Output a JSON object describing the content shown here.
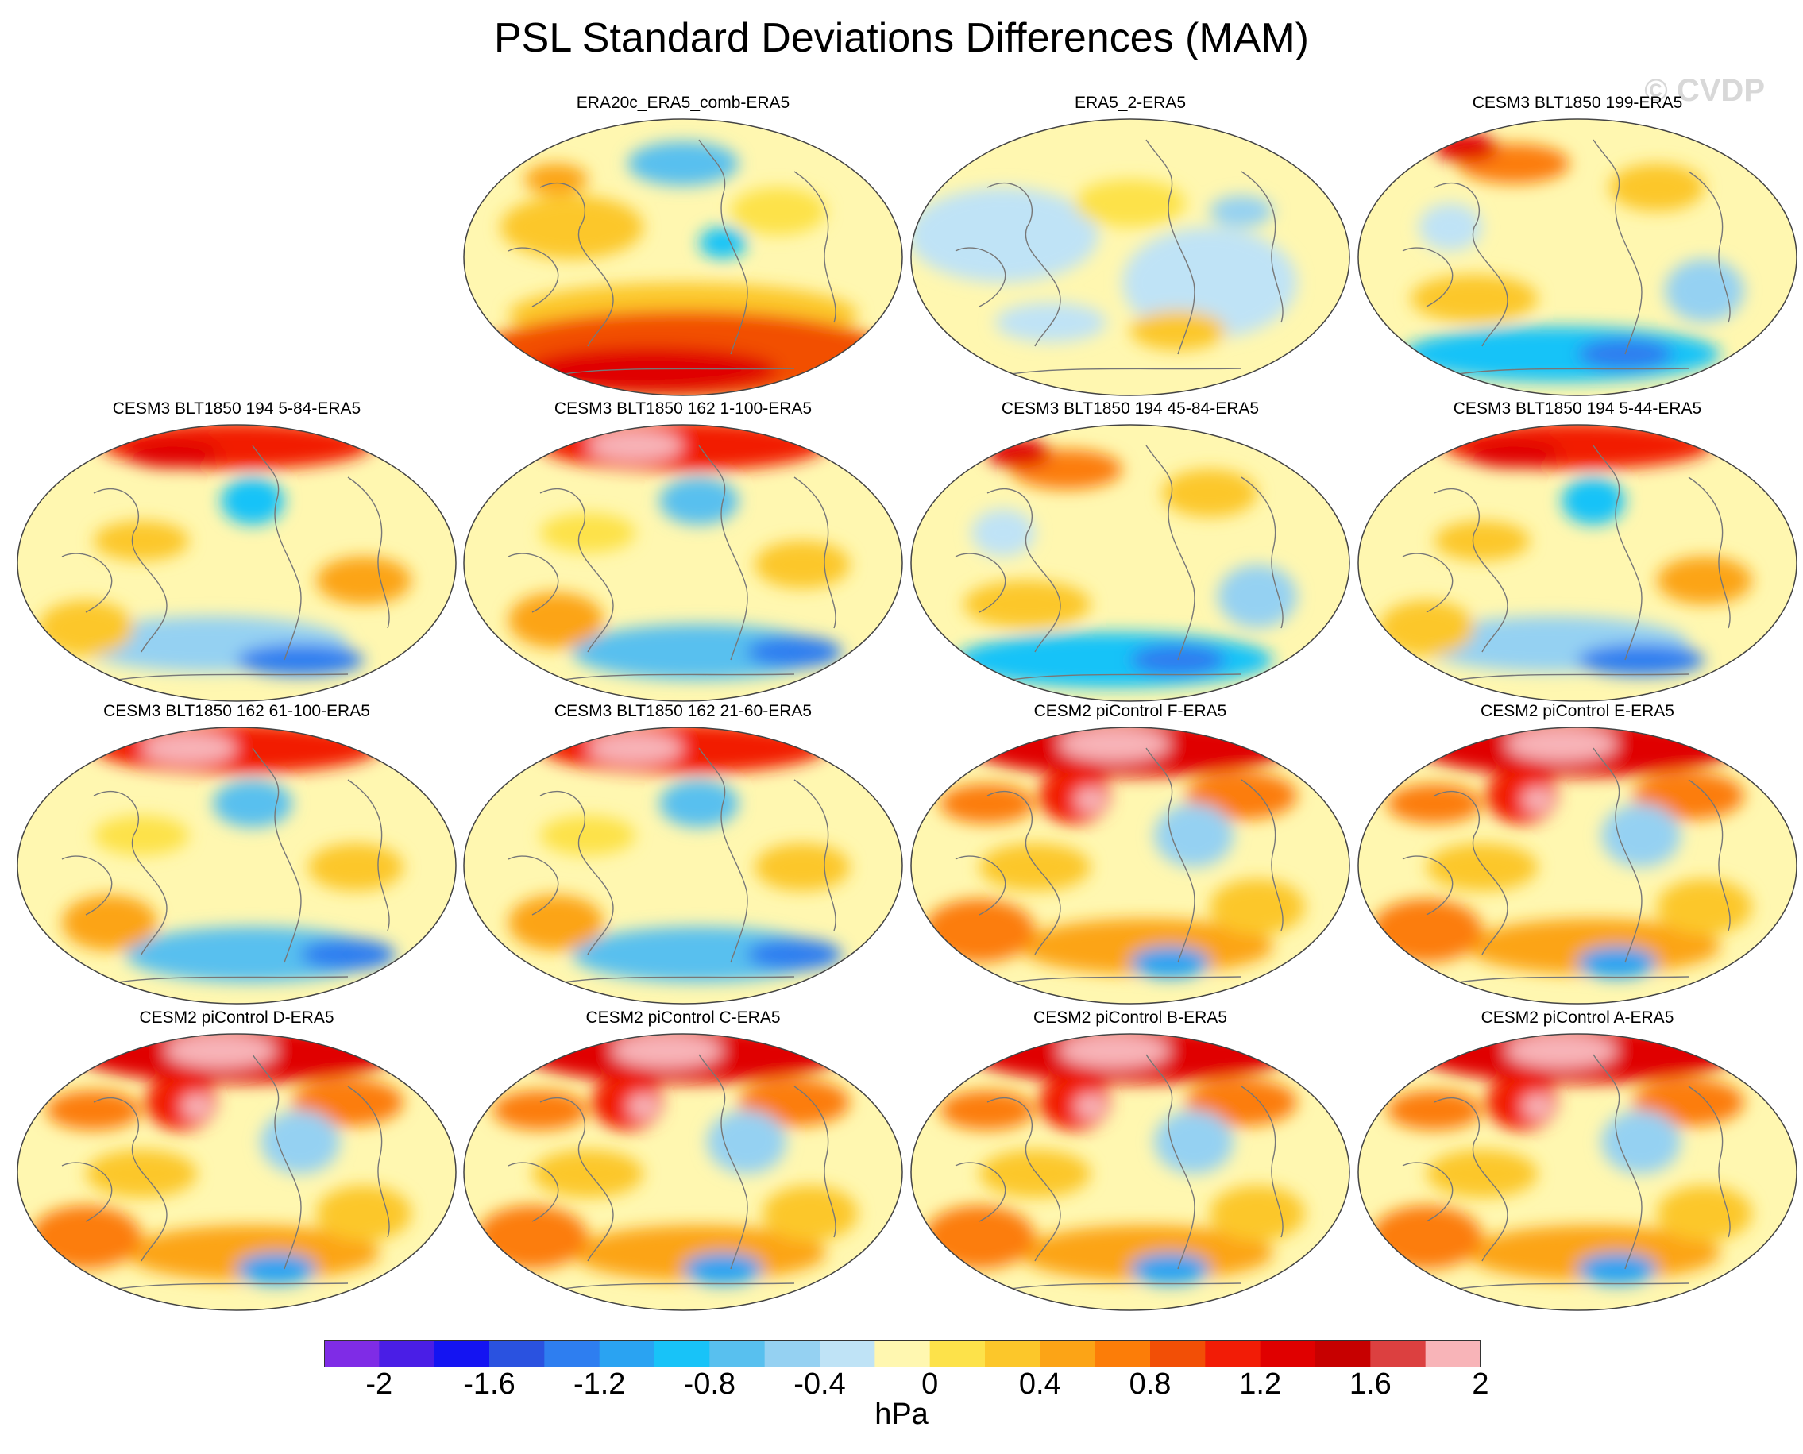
{
  "title": "PSL Standard Deviations Differences (MAM)",
  "watermark": "© CVDP",
  "colors": {
    "scale": [
      "#7f2ce6",
      "#4a1ee6",
      "#1414f2",
      "#2a52e0",
      "#2e7ef0",
      "#2aa3f2",
      "#18c3f8",
      "#58c0ef",
      "#95d1f2",
      "#bfe3f6",
      "#fff7b0",
      "#fde24a",
      "#fcc72a",
      "#fca416",
      "#fc7d08",
      "#f24f06",
      "#f21c06",
      "#e00000",
      "#c70000",
      "#dc4040",
      "#f8b4b8"
    ],
    "coast": "#777777",
    "outline": "#444444"
  },
  "colorbar": {
    "tick_labels": [
      "-2",
      "-1.6",
      "-1.2",
      "-0.8",
      "-0.4",
      "0",
      "0.4",
      "0.8",
      "1.2",
      "1.6",
      "2"
    ],
    "units": "hPa"
  },
  "panels": [
    {
      "label": "ERA20c_ERA5_comb-ERA5",
      "pattern": "southern-red"
    },
    {
      "label": "ERA5_2-ERA5",
      "pattern": "mild"
    },
    {
      "label": "CESM3 BLT1850 199-ERA5",
      "pattern": "blue-south"
    },
    {
      "label": "CESM3 BLT1850 194 5-84-ERA5",
      "pattern": "north-red"
    },
    {
      "label": "CESM3 BLT1850 162 1-100-ERA5",
      "pattern": "north-pink"
    },
    {
      "label": "CESM3 BLT1850 194 45-84-ERA5",
      "pattern": "blue-south"
    },
    {
      "label": "CESM3 BLT1850 194 5-44-ERA5",
      "pattern": "north-red"
    },
    {
      "label": "CESM3 BLT1850 162 61-100-ERA5",
      "pattern": "north-pink"
    },
    {
      "label": "CESM3 BLT1850 162 21-60-ERA5",
      "pattern": "north-pink"
    },
    {
      "label": "CESM2 piControl F-ERA5",
      "pattern": "strong-red"
    },
    {
      "label": "CESM2 piControl E-ERA5",
      "pattern": "strong-red"
    },
    {
      "label": "CESM2 piControl D-ERA5",
      "pattern": "strong-red"
    },
    {
      "label": "CESM2 piControl C-ERA5",
      "pattern": "strong-red"
    },
    {
      "label": "CESM2 piControl B-ERA5",
      "pattern": "strong-red"
    },
    {
      "label": "CESM2 piControl A-ERA5",
      "pattern": "strong-red"
    }
  ]
}
